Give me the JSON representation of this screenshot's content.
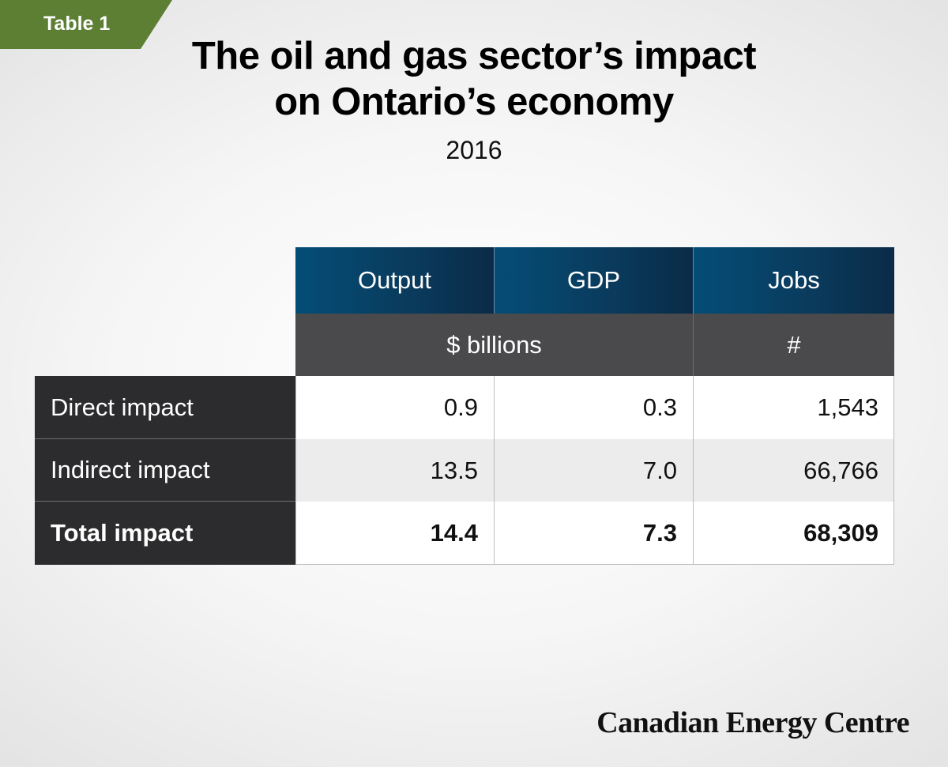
{
  "tag": {
    "label": "Table 1"
  },
  "title": {
    "line1": "The oil and gas sector’s impact",
    "line2": "on Ontario’s economy"
  },
  "subtitle": "2016",
  "table": {
    "columns": [
      "Output",
      "GDP",
      "Jobs"
    ],
    "units": {
      "money": "$ billions",
      "jobs": "#"
    },
    "rows": [
      {
        "label": "Direct impact",
        "output": "0.9",
        "gdp": "0.3",
        "jobs": "1,543"
      },
      {
        "label": "Indirect impact",
        "output": "13.5",
        "gdp": "7.0",
        "jobs": "66,766"
      },
      {
        "label": "Total impact",
        "output": "14.4",
        "gdp": "7.3",
        "jobs": "68,309"
      }
    ]
  },
  "brand": "Canadian Energy Centre",
  "colors": {
    "tag_green": "#5d7f34",
    "header_navy": "#0a3a5c",
    "unit_grey": "#4a4a4c",
    "row_label_dark": "#2c2c2e"
  }
}
